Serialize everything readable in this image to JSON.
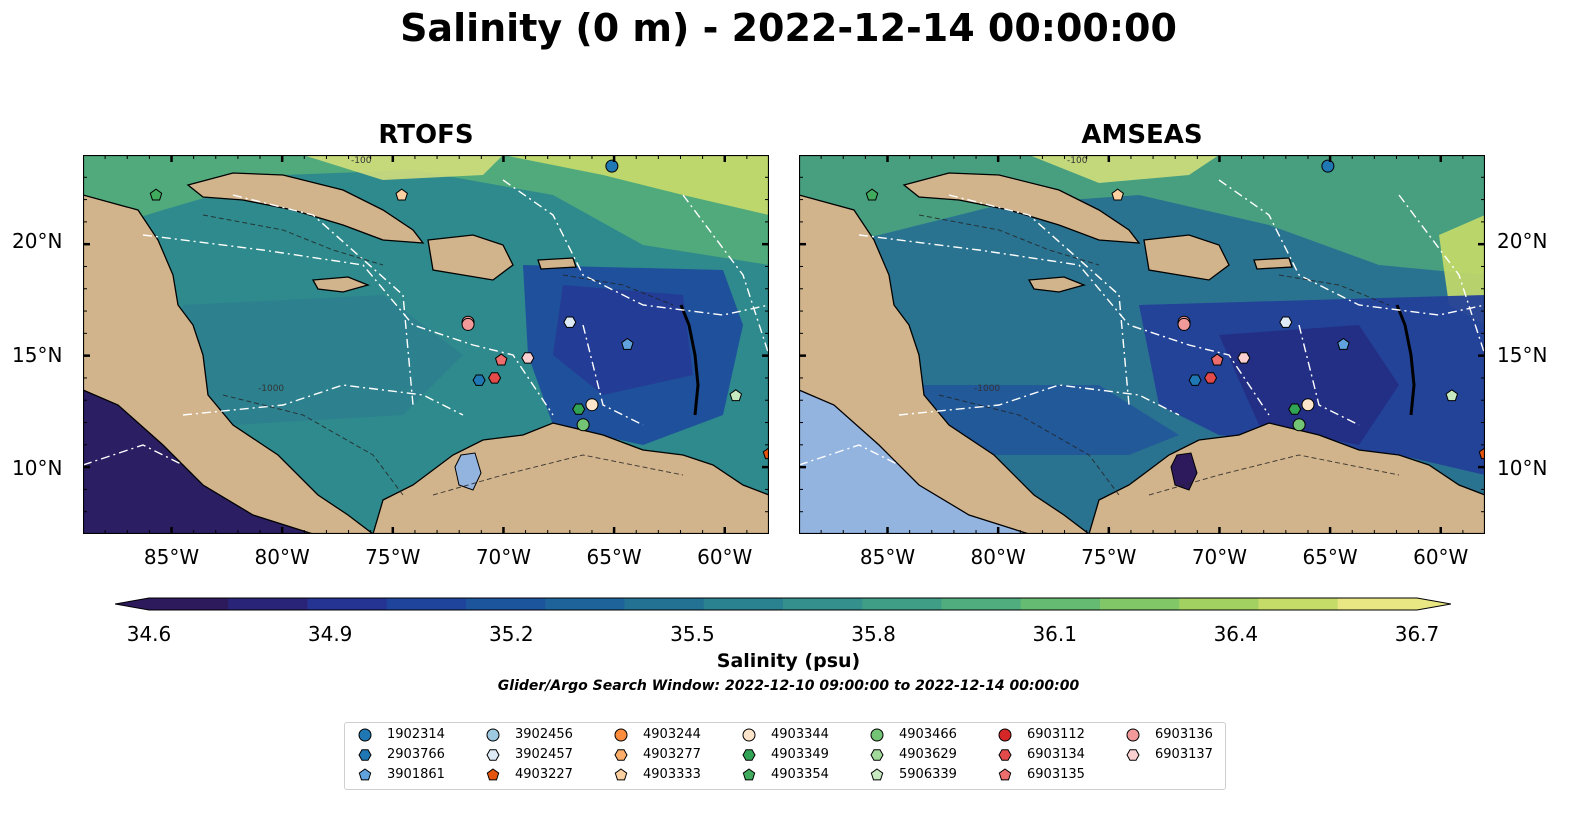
{
  "title": "Salinity (0 m) - 2022-12-14 00:00:00",
  "panels": [
    {
      "name": "RTOFS"
    },
    {
      "name": "AMSEAS"
    }
  ],
  "map_extent": {
    "lon_min": -89,
    "lon_max": -58,
    "lat_min": 7,
    "lat_max": 24
  },
  "lat_ticks": [
    "20°N",
    "15°N",
    "10°N"
  ],
  "lon_ticks": [
    "85°W",
    "80°W",
    "75°W",
    "70°W",
    "65°W",
    "60°W"
  ],
  "colorbar": {
    "label": "Salinity (psu)",
    "min": 34.6,
    "max": 36.7,
    "ticks": [
      "34.6",
      "34.9",
      "35.2",
      "35.5",
      "35.8",
      "36.1",
      "36.4",
      "36.7"
    ],
    "colors": [
      "#2c1a5c",
      "#2a2478",
      "#253392",
      "#1f449c",
      "#1c559c",
      "#1e6399",
      "#237294",
      "#2a8190",
      "#33908c",
      "#3f9e86",
      "#50ad7e",
      "#66bb73",
      "#82c767",
      "#a3d161",
      "#c6dc68",
      "#e9e684"
    ],
    "extend": "both"
  },
  "contour_labels": [
    "-100",
    "-1000"
  ],
  "search_window": "Glider/Argo Search Window: 2022-12-10 09:00:00 to 2022-12-14 00:00:00",
  "legend": [
    {
      "id": "1902314",
      "color": "#1f77b4",
      "marker": "circle"
    },
    {
      "id": "2903766",
      "color": "#1f77b4",
      "marker": "hexagon"
    },
    {
      "id": "3901861",
      "color": "#5fa2dd",
      "marker": "pentagon"
    },
    {
      "id": "3902456",
      "color": "#9ecae1",
      "marker": "circle"
    },
    {
      "id": "3902457",
      "color": "#deebf7",
      "marker": "hexagon"
    },
    {
      "id": "4903227",
      "color": "#e6550d",
      "marker": "pentagon"
    },
    {
      "id": "4903244",
      "color": "#fd8d3c",
      "marker": "circle"
    },
    {
      "id": "4903277",
      "color": "#fdae6b",
      "marker": "hexagon"
    },
    {
      "id": "4903333",
      "color": "#fdd0a2",
      "marker": "pentagon"
    },
    {
      "id": "4903344",
      "color": "#fde5cc",
      "marker": "circle"
    },
    {
      "id": "4903349",
      "color": "#31a354",
      "marker": "hexagon"
    },
    {
      "id": "4903354",
      "color": "#41ab5d",
      "marker": "pentagon"
    },
    {
      "id": "4903466",
      "color": "#74c476",
      "marker": "circle"
    },
    {
      "id": "4903629",
      "color": "#a1d99b",
      "marker": "hexagon"
    },
    {
      "id": "5906339",
      "color": "#c7e9c0",
      "marker": "pentagon"
    },
    {
      "id": "6903112",
      "color": "#d62728",
      "marker": "circle"
    },
    {
      "id": "6903134",
      "color": "#e34a4a",
      "marker": "hexagon"
    },
    {
      "id": "6903135",
      "color": "#ee6e6e",
      "marker": "pentagon"
    },
    {
      "id": "6903136",
      "color": "#f29a9a",
      "marker": "circle"
    },
    {
      "id": "6903137",
      "color": "#fbd0d0",
      "marker": "hexagon"
    }
  ],
  "observations": [
    {
      "id": "1902314",
      "lon": -65.1,
      "lat": 23.5
    },
    {
      "id": "4903333",
      "lon": -74.6,
      "lat": 22.2
    },
    {
      "id": "4903354",
      "lon": -85.7,
      "lat": 22.2
    },
    {
      "id": "6903136",
      "lon": -71.6,
      "lat": 16.5
    },
    {
      "id": "6903136",
      "lon": -71.6,
      "lat": 16.4
    },
    {
      "id": "3902457",
      "lon": -67.0,
      "lat": 16.5
    },
    {
      "id": "3901861",
      "lon": -64.4,
      "lat": 15.5
    },
    {
      "id": "6903135",
      "lon": -70.1,
      "lat": 14.8
    },
    {
      "id": "6903137",
      "lon": -68.9,
      "lat": 14.9
    },
    {
      "id": "6903134",
      "lon": -70.4,
      "lat": 14.0
    },
    {
      "id": "2903766",
      "lon": -71.1,
      "lat": 13.9
    },
    {
      "id": "4903349",
      "lon": -66.6,
      "lat": 12.6
    },
    {
      "id": "4903344",
      "lon": -66.0,
      "lat": 12.8
    },
    {
      "id": "4903466",
      "lon": -66.4,
      "lat": 11.9
    },
    {
      "id": "5906339",
      "lon": -59.5,
      "lat": 13.2
    },
    {
      "id": "4903227",
      "lon": -58.0,
      "lat": 10.6
    }
  ]
}
